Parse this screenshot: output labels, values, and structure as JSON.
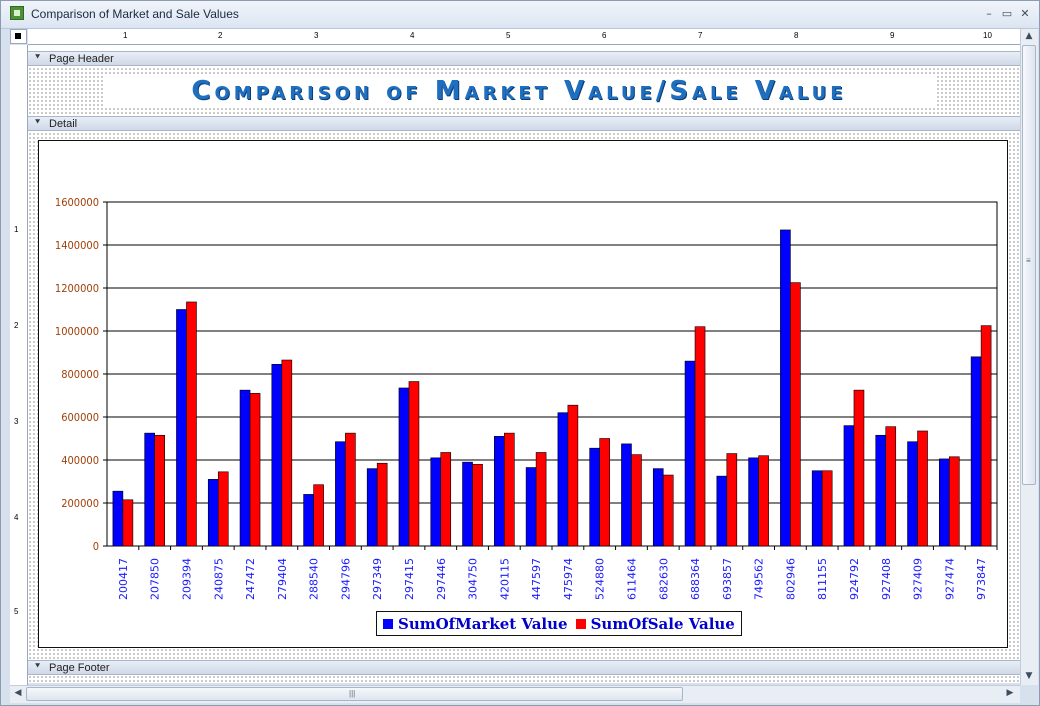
{
  "window": {
    "title": "Comparison of Market and Sale Values",
    "controls": {
      "minimize": "–",
      "restore": "▭",
      "close": "✕"
    }
  },
  "ruler": {
    "top_numbers": [
      "1",
      "2",
      "3",
      "4",
      "5",
      "6",
      "7",
      "8",
      "9",
      "10"
    ],
    "left_numbers": [
      "1",
      "2",
      "3",
      "4",
      "5"
    ]
  },
  "sections": {
    "page_header": "Page Header",
    "detail": "Detail",
    "page_footer": "Page Footer"
  },
  "report": {
    "title": "Comparison of Market Value/Sale Value"
  },
  "colors": {
    "market": "#0000ff",
    "sale": "#ff0000",
    "ytick": "#a0400a",
    "xtick": "#1a1aff"
  },
  "chart_data": {
    "type": "bar",
    "categories": [
      "200417",
      "207850",
      "209394",
      "240875",
      "247472",
      "279404",
      "288540",
      "294796",
      "297349",
      "297415",
      "297446",
      "304750",
      "420115",
      "447597",
      "475974",
      "524880",
      "611464",
      "682630",
      "688364",
      "693857",
      "749562",
      "802946",
      "811155",
      "924792",
      "927408",
      "927409",
      "927474",
      "973847"
    ],
    "series": [
      {
        "name": "SumOfMarket Value",
        "values": [
          255000,
          525000,
          1100000,
          310000,
          725000,
          845000,
          240000,
          485000,
          360000,
          735000,
          410000,
          390000,
          510000,
          365000,
          620000,
          455000,
          475000,
          360000,
          860000,
          325000,
          410000,
          1470000,
          350000,
          560000,
          515000,
          485000,
          405000,
          880000
        ]
      },
      {
        "name": "SumOfSale Value",
        "values": [
          215000,
          515000,
          1135000,
          345000,
          710000,
          865000,
          285000,
          525000,
          385000,
          765000,
          435000,
          380000,
          525000,
          435000,
          655000,
          500000,
          425000,
          330000,
          1020000,
          430000,
          420000,
          1225000,
          350000,
          725000,
          555000,
          535000,
          415000,
          1025000
        ]
      }
    ],
    "ylim": [
      0,
      1600000
    ],
    "yticks": [
      "0",
      "200000",
      "400000",
      "600000",
      "800000",
      "1000000",
      "1200000",
      "1400000",
      "1600000"
    ],
    "ytick_values": [
      0,
      200000,
      400000,
      600000,
      800000,
      1000000,
      1200000,
      1400000,
      1600000
    ],
    "grid": true,
    "legend": "bottom"
  }
}
